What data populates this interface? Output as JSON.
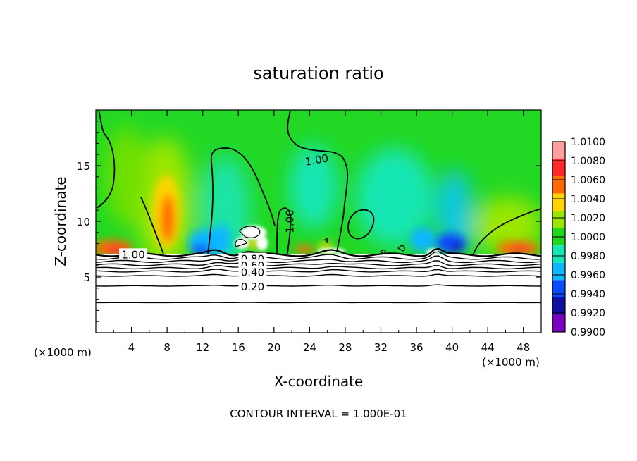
{
  "chart_data": {
    "type": "heatmap",
    "title": "saturation ratio",
    "xlabel": "X-coordinate",
    "ylabel": "Z-coordinate",
    "x_unit_left": "(×1000 m)",
    "x_unit_right": "(×1000 m)",
    "xlim": [
      0,
      50
    ],
    "ylim": [
      0,
      20
    ],
    "x_ticks": [
      4,
      8,
      12,
      16,
      20,
      24,
      28,
      32,
      36,
      40,
      44,
      48
    ],
    "y_ticks": [
      5,
      10,
      15
    ],
    "footer": "CONTOUR INTERVAL = 1.000E-01",
    "colorbar": {
      "levels": [
        "1.0100",
        "1.0080",
        "1.0060",
        "1.0040",
        "1.0020",
        "1.0000",
        "0.9980",
        "0.9960",
        "0.9940",
        "0.9920",
        "0.9900"
      ],
      "colors": [
        "#ff9e9e",
        "#ff2a2a",
        "#ff6a00",
        "#ffd400",
        "#9be600",
        "#20d820",
        "#14e6b4",
        "#11b6ff",
        "#0a4cff",
        "#1010a0",
        "#7a00c0"
      ]
    },
    "contour_labels": [
      {
        "text": "1.00",
        "x": 24.8,
        "y": 15.5,
        "angle": -10
      },
      {
        "text": "1.00",
        "x": 21.8,
        "y": 10.0,
        "angle": -90
      },
      {
        "text": "1.00",
        "x": 4.2,
        "y": 7.0,
        "angle": 0
      },
      {
        "text": "0.80",
        "x": 17.6,
        "y": 6.6,
        "angle": 0
      },
      {
        "text": "0.60",
        "x": 17.6,
        "y": 6.0,
        "angle": 0
      },
      {
        "text": "0.40",
        "x": 17.6,
        "y": 5.4,
        "angle": 0
      },
      {
        "text": "0.20",
        "x": 17.6,
        "y": 4.1,
        "angle": 0
      }
    ],
    "low_contours_y": [
      7.0,
      6.7,
      6.4,
      6.1,
      5.8,
      5.5,
      5.1,
      4.2,
      2.7
    ],
    "cloud_top_z": 7.1
  }
}
